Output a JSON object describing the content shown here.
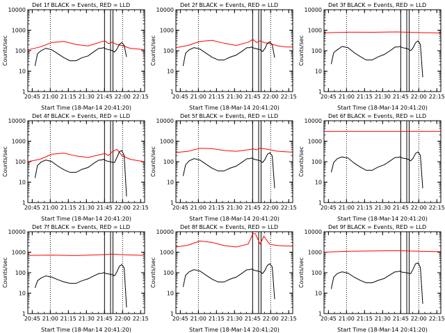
{
  "colors": {
    "events": "#000000",
    "lld": "#ff0000",
    "axes": "#000000",
    "background": "#ffffff"
  },
  "layout_rule": "3x3 grid, panels ordered left-to-right, top-to-bottom",
  "common": {
    "ylabel": "Counts/sec",
    "xlabel": "Start Time (18-Mar-14 20:41:20)",
    "x_ticks": [
      "20:45",
      "21:00",
      "21:15",
      "21:30",
      "21:45",
      "22:00",
      "22:15"
    ],
    "y_ticks": [
      "1",
      "10",
      "100",
      "1000",
      "10000"
    ]
  },
  "chart_data": [
    {
      "type": "line",
      "title": "Det 1f BLACK = Events, RED = LLD",
      "xlabel": "Start Time (18-Mar-14 20:41:20)",
      "ylabel": "Counts/sec",
      "x_unit": "minutes after 20:41:20",
      "xlim": [
        0,
        97
      ],
      "ylim": [
        1,
        10000
      ],
      "yscale": "log",
      "dotted_lines_x": [
        18.7,
        78.7
      ],
      "solid_lines_x": [
        63.7,
        68.7,
        70.7
      ],
      "series": [
        {
          "color": "#ff0000",
          "x": [
            0,
            10,
            20,
            30,
            40,
            50,
            60,
            64,
            67,
            70,
            74,
            78,
            85,
            92,
            97
          ],
          "y": [
            110,
            150,
            250,
            280,
            200,
            170,
            260,
            300,
            220,
            260,
            200,
            180,
            130,
            120,
            110
          ]
        },
        {
          "color": "#000000",
          "x": [
            6,
            8,
            11,
            15,
            20,
            25,
            30,
            35,
            40,
            45,
            50,
            55,
            59,
            61,
            63,
            65,
            68,
            70,
            72,
            74,
            76,
            78,
            80,
            82
          ],
          "y": [
            18,
            70,
            100,
            130,
            110,
            70,
            45,
            32,
            32,
            45,
            55,
            90,
            130,
            130,
            140,
            120,
            110,
            100,
            85,
            120,
            200,
            250,
            180,
            50
          ]
        }
      ]
    },
    {
      "type": "line",
      "title": "Det 2f BLACK = Events, RED = LLD",
      "xlabel": "Start Time (18-Mar-14 20:41:20)",
      "ylabel": "Counts/sec",
      "x_unit": "minutes after 20:41:20",
      "xlim": [
        0,
        97
      ],
      "ylim": [
        1,
        10000
      ],
      "yscale": "log",
      "dotted_lines_x": [
        18.7,
        78.7
      ],
      "solid_lines_x": [
        63.7,
        68.7,
        70.7
      ],
      "series": [
        {
          "color": "#ff0000",
          "x": [
            0,
            10,
            20,
            30,
            40,
            50,
            60,
            64,
            67,
            70,
            74,
            78,
            85,
            92,
            97
          ],
          "y": [
            140,
            180,
            280,
            320,
            230,
            180,
            260,
            350,
            250,
            300,
            240,
            220,
            170,
            150,
            150
          ]
        },
        {
          "color": "#000000",
          "x": [
            6,
            8,
            11,
            15,
            20,
            25,
            30,
            35,
            40,
            45,
            50,
            55,
            59,
            61,
            63,
            65,
            68,
            70,
            72,
            74,
            76,
            78,
            80,
            82
          ],
          "y": [
            18,
            75,
            110,
            140,
            120,
            75,
            48,
            35,
            35,
            48,
            60,
            95,
            140,
            140,
            150,
            130,
            120,
            110,
            90,
            130,
            230,
            270,
            190,
            45
          ]
        }
      ]
    },
    {
      "type": "line",
      "title": "Det 3f BLACK = Events, RED = LLD",
      "xlabel": "Start Time (18-Mar-14 20:41:20)",
      "ylabel": "Counts/sec",
      "x_unit": "minutes after 20:41:20",
      "xlim": [
        0,
        97
      ],
      "ylim": [
        1,
        10000
      ],
      "yscale": "log",
      "dotted_lines_x": [
        18.7,
        78.7
      ],
      "solid_lines_x": [
        63.7,
        68.7,
        70.7
      ],
      "series": [
        {
          "color": "#ff0000",
          "x": [
            0,
            20,
            40,
            60,
            70,
            80,
            97
          ],
          "y": [
            750,
            800,
            790,
            820,
            790,
            760,
            730
          ]
        },
        {
          "color": "#000000",
          "x": [
            6,
            8,
            11,
            15,
            20,
            25,
            30,
            35,
            40,
            45,
            50,
            55,
            59,
            61,
            63,
            65,
            68,
            70,
            72,
            74,
            76,
            78,
            80,
            82
          ],
          "y": [
            22,
            80,
            110,
            160,
            140,
            80,
            52,
            35,
            35,
            50,
            65,
            100,
            150,
            150,
            160,
            140,
            130,
            120,
            100,
            140,
            240,
            300,
            200,
            5
          ]
        }
      ]
    },
    {
      "type": "line",
      "title": "Det 4f BLACK = Events, RED = LLD",
      "xlabel": "Start Time (18-Mar-14 20:41:20)",
      "ylabel": "Counts/sec",
      "x_unit": "minutes after 20:41:20",
      "xlim": [
        0,
        97
      ],
      "ylim": [
        1,
        10000
      ],
      "yscale": "log",
      "dotted_lines_x": [
        18.7,
        78.7
      ],
      "solid_lines_x": [
        63.7,
        68.7,
        70.7
      ],
      "series": [
        {
          "color": "#ff0000",
          "x": [
            0,
            10,
            20,
            30,
            40,
            50,
            60,
            64,
            67,
            70,
            74,
            78,
            85,
            92,
            97
          ],
          "y": [
            100,
            130,
            230,
            260,
            190,
            160,
            220,
            250,
            200,
            300,
            400,
            200,
            130,
            110,
            100
          ]
        },
        {
          "color": "#000000",
          "x": [
            6,
            8,
            11,
            15,
            20,
            25,
            30,
            35,
            40,
            45,
            50,
            55,
            59,
            61,
            63,
            65,
            68,
            70,
            72,
            74,
            76,
            78,
            80,
            82
          ],
          "y": [
            16,
            65,
            95,
            120,
            100,
            60,
            40,
            30,
            30,
            42,
            52,
            85,
            120,
            120,
            130,
            110,
            100,
            95,
            90,
            160,
            300,
            350,
            200,
            2
          ]
        }
      ]
    },
    {
      "type": "line",
      "title": "Det 5f BLACK = Events, RED = LLD",
      "xlabel": "Start Time (18-Mar-14 20:41:20)",
      "ylabel": "Counts/sec",
      "x_unit": "minutes after 20:41:20",
      "xlim": [
        0,
        97
      ],
      "ylim": [
        1,
        10000
      ],
      "yscale": "log",
      "dotted_lines_x": [
        18.7,
        78.7
      ],
      "solid_lines_x": [
        63.7,
        68.7,
        70.7
      ],
      "series": [
        {
          "color": "#ff0000",
          "x": [
            0,
            10,
            20,
            30,
            40,
            50,
            60,
            64,
            67,
            70,
            74,
            78,
            85,
            92,
            97
          ],
          "y": [
            280,
            320,
            450,
            430,
            350,
            320,
            380,
            420,
            380,
            450,
            420,
            380,
            320,
            300,
            290
          ]
        },
        {
          "color": "#000000",
          "x": [
            6,
            8,
            11,
            15,
            20,
            25,
            30,
            35,
            40,
            45,
            50,
            55,
            59,
            61,
            63,
            65,
            68,
            70,
            72,
            74,
            76,
            78,
            80,
            82
          ],
          "y": [
            20,
            70,
            110,
            140,
            120,
            75,
            48,
            35,
            35,
            48,
            60,
            95,
            140,
            140,
            150,
            130,
            120,
            110,
            90,
            130,
            230,
            270,
            190,
            5
          ]
        }
      ]
    },
    {
      "type": "line",
      "title": "Det 6f BLACK = Events, RED = LLD",
      "xlabel": "Start Time (18-Mar-14 20:41:20)",
      "ylabel": "Counts/sec",
      "x_unit": "minutes after 20:41:20",
      "xlim": [
        0,
        97
      ],
      "ylim": [
        1,
        10000
      ],
      "yscale": "log",
      "dotted_lines_x": [
        18.7,
        78.7
      ],
      "solid_lines_x": [
        63.7,
        68.7,
        70.7
      ],
      "series": [
        {
          "color": "#ff0000",
          "x": [
            0,
            20,
            40,
            60,
            70,
            80,
            97
          ],
          "y": [
            3000,
            3000,
            3000,
            3000,
            3000,
            3000,
            3000
          ]
        },
        {
          "color": "#000000",
          "x": [
            6,
            8,
            11,
            15,
            20,
            25,
            30,
            35,
            40,
            45,
            50,
            55,
            59,
            61,
            63,
            65,
            68,
            70,
            72,
            74,
            76,
            78,
            80,
            82
          ],
          "y": [
            30,
            90,
            140,
            170,
            150,
            85,
            55,
            38,
            38,
            55,
            70,
            110,
            160,
            160,
            170,
            150,
            140,
            130,
            110,
            150,
            250,
            300,
            200,
            5
          ]
        }
      ]
    },
    {
      "type": "line",
      "title": "Det 7f BLACK = Events, RED = LLD",
      "xlabel": "Start Time (18-Mar-14 20:41:20)",
      "ylabel": "Counts/sec",
      "x_unit": "minutes after 20:41:20",
      "xlim": [
        0,
        97
      ],
      "ylim": [
        1,
        10000
      ],
      "yscale": "log",
      "dotted_lines_x": [
        18.7,
        78.7
      ],
      "solid_lines_x": [
        63.7,
        68.7,
        70.7
      ],
      "series": [
        {
          "color": "#ff0000",
          "x": [
            0,
            20,
            40,
            60,
            70,
            80,
            97
          ],
          "y": [
            700,
            720,
            680,
            750,
            800,
            750,
            700
          ]
        },
        {
          "color": "#000000",
          "x": [
            6,
            8,
            11,
            15,
            20,
            25,
            30,
            35,
            40,
            45,
            50,
            55,
            59,
            61,
            63,
            65,
            68,
            70,
            72,
            74,
            76,
            78,
            80,
            82
          ],
          "y": [
            18,
            40,
            55,
            70,
            60,
            45,
            35,
            30,
            30,
            40,
            50,
            70,
            90,
            90,
            100,
            90,
            85,
            80,
            70,
            110,
            200,
            250,
            170,
            2
          ]
        }
      ]
    },
    {
      "type": "line",
      "title": "Det 8f BLACK = Events, RED = LLD",
      "xlabel": "Start Time (18-Mar-14 20:41:20)",
      "ylabel": "Counts/sec",
      "x_unit": "minutes after 20:41:20",
      "xlim": [
        0,
        97
      ],
      "ylim": [
        1,
        10000
      ],
      "yscale": "log",
      "dotted_lines_x": [
        18.7,
        78.7
      ],
      "solid_lines_x": [
        63.7,
        68.7,
        70.7
      ],
      "series": [
        {
          "color": "#ff0000",
          "x": [
            0,
            10,
            20,
            30,
            40,
            50,
            60,
            64,
            66,
            70,
            73,
            78,
            85,
            92,
            97
          ],
          "y": [
            1800,
            2200,
            3500,
            3000,
            2100,
            1800,
            2500,
            8000,
            8000,
            2500,
            6000,
            2400,
            2100,
            2000,
            2000
          ]
        },
        {
          "color": "#000000",
          "x": [
            6,
            8,
            11,
            15,
            20,
            25,
            30,
            35,
            40,
            45,
            50,
            55,
            59,
            61,
            63,
            65,
            68,
            70,
            72,
            74,
            76,
            78,
            80,
            82
          ],
          "y": [
            20,
            75,
            110,
            140,
            120,
            75,
            48,
            35,
            35,
            48,
            60,
            95,
            140,
            140,
            150,
            130,
            120,
            110,
            90,
            130,
            230,
            270,
            190,
            5
          ]
        }
      ]
    },
    {
      "type": "line",
      "title": "Det 9f BLACK = Events, RED = LLD",
      "xlabel": "Start Time (18-Mar-14 20:41:20)",
      "ylabel": "Counts/sec",
      "x_unit": "minutes after 20:41:20",
      "xlim": [
        0,
        97
      ],
      "ylim": [
        1,
        10000
      ],
      "yscale": "log",
      "dotted_lines_x": [
        18.7,
        78.7
      ],
      "solid_lines_x": [
        63.7,
        68.7,
        70.7
      ],
      "series": [
        {
          "color": "#ff0000",
          "x": [
            0,
            20,
            40,
            60,
            70,
            80,
            97
          ],
          "y": [
            1000,
            1100,
            1150,
            1200,
            1150,
            1100,
            1050
          ]
        },
        {
          "color": "#000000",
          "x": [
            6,
            8,
            11,
            15,
            20,
            25,
            30,
            35,
            40,
            45,
            50,
            55,
            59,
            61,
            63,
            65,
            68,
            70,
            72,
            74,
            76,
            78,
            80,
            82
          ],
          "y": [
            16,
            60,
            90,
            110,
            95,
            60,
            42,
            32,
            32,
            42,
            52,
            80,
            110,
            110,
            120,
            105,
            100,
            95,
            90,
            150,
            270,
            300,
            180,
            3
          ]
        }
      ]
    }
  ]
}
